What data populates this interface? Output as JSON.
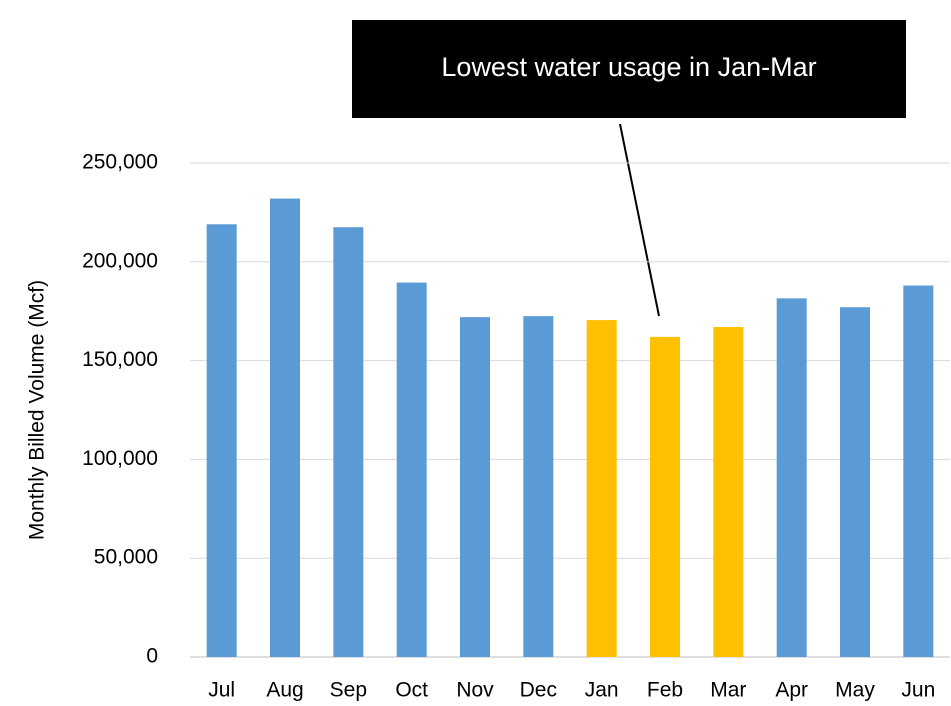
{
  "chart_data": {
    "type": "bar",
    "y_axis_label": "Monthly Billed Volume (Mcf)",
    "annotation": "Lowest water usage in Jan-Mar",
    "categories": [
      "Jul",
      "Aug",
      "Sep",
      "Oct",
      "Nov",
      "Dec",
      "Jan",
      "Feb",
      "Mar",
      "Apr",
      "May",
      "Jun"
    ],
    "values": [
      219000,
      232000,
      217500,
      189500,
      172000,
      172500,
      170500,
      162000,
      167000,
      181500,
      177000,
      188000
    ],
    "colors": [
      "#5b9bd5",
      "#5b9bd5",
      "#5b9bd5",
      "#5b9bd5",
      "#5b9bd5",
      "#5b9bd5",
      "#ffc000",
      "#ffc000",
      "#ffc000",
      "#5b9bd5",
      "#5b9bd5",
      "#5b9bd5"
    ],
    "ylim": [
      0,
      250000
    ],
    "yticks": [
      0,
      {
        "value": 50000,
        "label": "50,000"
      },
      {
        "value": 100000,
        "label": "100,000"
      },
      {
        "value": 150000,
        "label": "150,000"
      },
      {
        "value": 200000,
        "label": "200,000"
      },
      {
        "value": 250000,
        "label": "250,000"
      }
    ],
    "grid": true
  }
}
